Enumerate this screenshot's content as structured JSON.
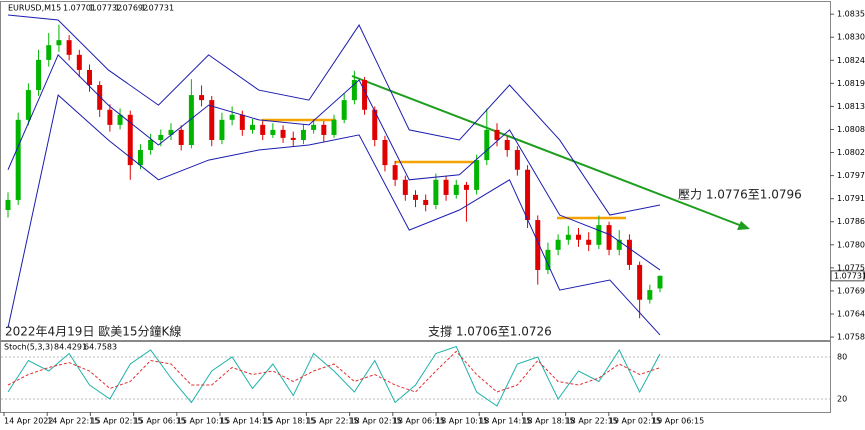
{
  "chart_data": {
    "type": "candlestick",
    "symbol": "EURUSD,M15",
    "annotations": [
      "壓力 1.0776至1.0796",
      "支撐 1.0706至1.0726",
      "2022年4月19日 歐美15分鐘K線"
    ],
    "ylim": [
      1.07578,
      1.08384
    ],
    "yticks": [
      1.08355,
      {
        "value": 1.083,
        "label": "1.08300"
      },
      1.08245,
      {
        "value": 1.0819,
        "label": "1.08190"
      },
      1.08135,
      {
        "value": 1.0808,
        "label": "1.08080"
      },
      1.08025,
      {
        "value": 1.0797,
        "label": "1.07970"
      },
      1.07915,
      {
        "value": 1.0786,
        "label": "1.07860"
      },
      1.07805,
      {
        "value": 1.0775,
        "label": "1.07750"
      },
      1.07695,
      {
        "value": 1.0764,
        "label": "1.07640"
      },
      1.07585
    ],
    "x_labels": [
      "14 Apr 2022",
      "14 Apr 22:15",
      "15 Apr 02:15",
      "15 Apr 06:15",
      "15 Apr 10:15",
      "15 Apr 14:15",
      "15 Apr 18:15",
      "15 Apr 22:15",
      "18 Apr 02:15",
      "18 Apr 06:15",
      "18 Apr 10:15",
      "18 Apr 14:15",
      "18 Apr 18:15",
      "18 Apr 22:15",
      "19 Apr 02:15",
      "19 Apr 06:15"
    ],
    "up_color": "#00b400",
    "down_color": "#e00000",
    "open": [
      1.07888,
      1.07912,
      1.08103,
      1.08174,
      1.08246,
      1.08281,
      1.08293,
      1.08258,
      1.08222,
      1.08186,
      1.08127,
      1.08091,
      1.08115,
      1.07995,
      1.08031,
      1.08055,
      1.08067,
      1.08079,
      1.08043,
      1.08162,
      1.0815,
      1.08055,
      1.08103,
      1.08115,
      1.08079,
      1.08091,
      1.08067,
      1.08079,
      1.0806,
      1.08055,
      1.08079,
      1.08091,
      1.08067,
      1.08103,
      1.0815,
      1.08198,
      1.08127,
      1.08055,
      1.07995,
      1.0796,
      1.07924,
      1.07912,
      1.079,
      1.0796,
      1.07924,
      1.07948,
      1.07936,
      1.08007,
      1.08079,
      1.08055,
      1.08031,
      1.07984,
      1.07864,
      1.07745,
      1.07793,
      1.07817,
      1.07829,
      1.07817,
      1.07805,
      1.07852,
      1.07793,
      1.07817,
      1.07757,
      1.07674,
      1.07701
    ],
    "high": [
      1.0793,
      1.0812,
      1.0819,
      1.0827,
      1.0831,
      1.0833,
      1.08305,
      1.0827,
      1.08235,
      1.08195,
      1.0814,
      1.0813,
      1.08125,
      1.08045,
      1.0807,
      1.0808,
      1.08095,
      1.0809,
      1.082,
      1.08185,
      1.0816,
      1.0812,
      1.08135,
      1.08125,
      1.08105,
      1.081,
      1.08095,
      1.0809,
      1.08075,
      1.08092,
      1.08105,
      1.081,
      1.08115,
      1.08165,
      1.0822,
      1.08205,
      1.08135,
      1.08065,
      1.08005,
      1.0797,
      1.07935,
      1.07925,
      1.07975,
      1.0797,
      1.0796,
      1.07955,
      1.0802,
      1.0813,
      1.08095,
      1.08065,
      1.0804,
      1.07995,
      1.07875,
      1.0781,
      1.0783,
      1.0785,
      1.07845,
      1.07835,
      1.07875,
      1.0786,
      1.0784,
      1.0783,
      1.07765,
      1.0771,
      1.07732
    ],
    "low": [
      1.0787,
      1.079,
      1.0809,
      1.0816,
      1.0823,
      1.08265,
      1.08245,
      1.08205,
      1.0817,
      1.0811,
      1.08075,
      1.0808,
      1.0796,
      1.07985,
      1.0802,
      1.0804,
      1.08055,
      1.0803,
      1.08035,
      1.08135,
      1.0804,
      1.08045,
      1.0809,
      1.08065,
      1.0807,
      1.08055,
      1.0806,
      1.08048,
      1.0804,
      1.08045,
      1.0807,
      1.0805,
      1.0806,
      1.08095,
      1.0814,
      1.08115,
      1.0804,
      1.0798,
      1.07945,
      1.0791,
      1.07895,
      1.07885,
      1.0789,
      1.0791,
      1.07915,
      1.0786,
      1.07925,
      1.07995,
      1.0804,
      1.08015,
      1.0797,
      1.07845,
      1.0771,
      1.07735,
      1.0778,
      1.07805,
      1.078,
      1.0779,
      1.07795,
      1.0778,
      1.0778,
      1.07745,
      1.0763,
      1.07665,
      1.07692
    ],
    "close": [
      1.07912,
      1.08103,
      1.08174,
      1.08246,
      1.08281,
      1.08293,
      1.08258,
      1.08222,
      1.08186,
      1.08127,
      1.08091,
      1.08115,
      1.07995,
      1.08031,
      1.08055,
      1.08067,
      1.08079,
      1.08043,
      1.08162,
      1.0815,
      1.08055,
      1.08103,
      1.08115,
      1.08079,
      1.08091,
      1.08067,
      1.08079,
      1.0806,
      1.08055,
      1.08079,
      1.08091,
      1.08067,
      1.08103,
      1.0815,
      1.08198,
      1.08127,
      1.08055,
      1.07995,
      1.0796,
      1.07924,
      1.07912,
      1.079,
      1.0796,
      1.07924,
      1.07948,
      1.07936,
      1.08007,
      1.08079,
      1.08055,
      1.08031,
      1.07984,
      1.07864,
      1.07745,
      1.07793,
      1.07817,
      1.07829,
      1.07817,
      1.07805,
      1.07852,
      1.07793,
      1.07817,
      1.07757,
      1.07674,
      1.07697,
      1.07731
    ],
    "bands": {
      "color": "#1c1cb0",
      "upper": [
        1.08353,
        1.08341,
        1.08222,
        1.08138,
        1.08258,
        1.08174,
        1.0815,
        1.08329,
        1.08079,
        1.08055,
        1.08186,
        1.08055,
        1.07876,
        1.079
      ],
      "middle": [
        1.07984,
        1.08258,
        1.08138,
        1.08043,
        1.08138,
        1.08103,
        1.08091,
        1.08198,
        1.0796,
        1.07972,
        1.08079,
        1.07876,
        1.07829,
        1.07745
      ],
      "lower": [
        1.07607,
        1.08162,
        1.08055,
        1.0796,
        1.08007,
        1.08031,
        1.08043,
        1.08067,
        1.0784,
        1.07888,
        1.0796,
        1.07697,
        1.07721,
        1.0759
      ]
    },
    "stoch": {
      "label": "Stoch(5,3,3)",
      "ylim": [
        0,
        100
      ],
      "yticks": [
        20,
        80
      ],
      "series": [
        {
          "name": "main",
          "color": "#20b2aa",
          "values": [
            30,
            75,
            60,
            85,
            40,
            20,
            70,
            90,
            50,
            15,
            60,
            80,
            35,
            70,
            25,
            85,
            60,
            30,
            75,
            15,
            40,
            85,
            95,
            30,
            10,
            70,
            80,
            20,
            60,
            45,
            90,
            30,
            84.4291
          ]
        },
        {
          "name": "signal",
          "color": "#e03030",
          "values": [
            40,
            55,
            65,
            72,
            60,
            35,
            45,
            75,
            70,
            40,
            40,
            65,
            55,
            60,
            45,
            60,
            70,
            45,
            55,
            40,
            30,
            60,
            88,
            55,
            30,
            40,
            75,
            45,
            40,
            50,
            70,
            55,
            64.7583
          ]
        }
      ]
    }
  }
}
